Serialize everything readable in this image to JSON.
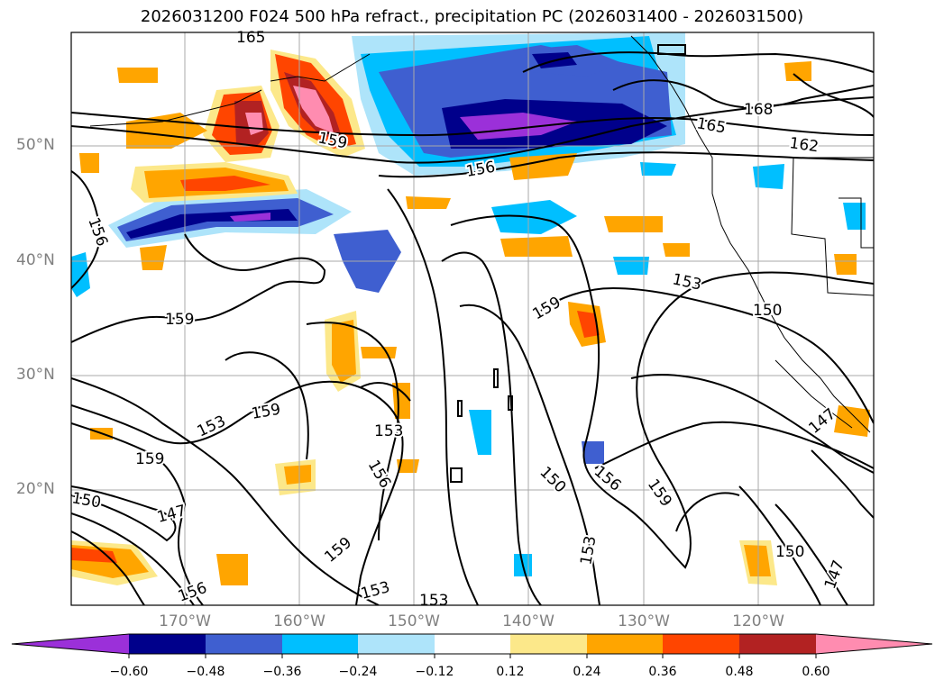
{
  "title": "2026031200 F024 500 hPa refract., precipitation PC (2026031400 - 2026031500)",
  "lat_labels": [
    "50°N",
    "40°N",
    "30°N",
    "20°N"
  ],
  "lon_labels": [
    "170°W",
    "160°W",
    "150°W",
    "140°W",
    "130°W",
    "120°W"
  ],
  "colorbar": {
    "ticks": [
      "−0.60",
      "−0.48",
      "−0.36",
      "−0.24",
      "−0.12",
      "0.12",
      "0.24",
      "0.36",
      "0.48",
      "0.60"
    ],
    "colors": [
      "#9b30d9",
      "#00008b",
      "#3f5fd0",
      "#00bfff",
      "#aee4fa",
      "#ffffff",
      "#fce88a",
      "#ffa500",
      "#ff4500",
      "#b22222",
      "#ff8cb0",
      "#ff8cb0"
    ]
  },
  "contour_labels": [
    "165",
    "168",
    "165",
    "162",
    "159",
    "156",
    "156",
    "159",
    "159",
    "153",
    "150",
    "159",
    "153",
    "159",
    "153",
    "150",
    "156",
    "159",
    "153",
    "156",
    "147",
    "159",
    "150",
    "147",
    "153",
    "153",
    "156",
    "150",
    "147"
  ]
}
